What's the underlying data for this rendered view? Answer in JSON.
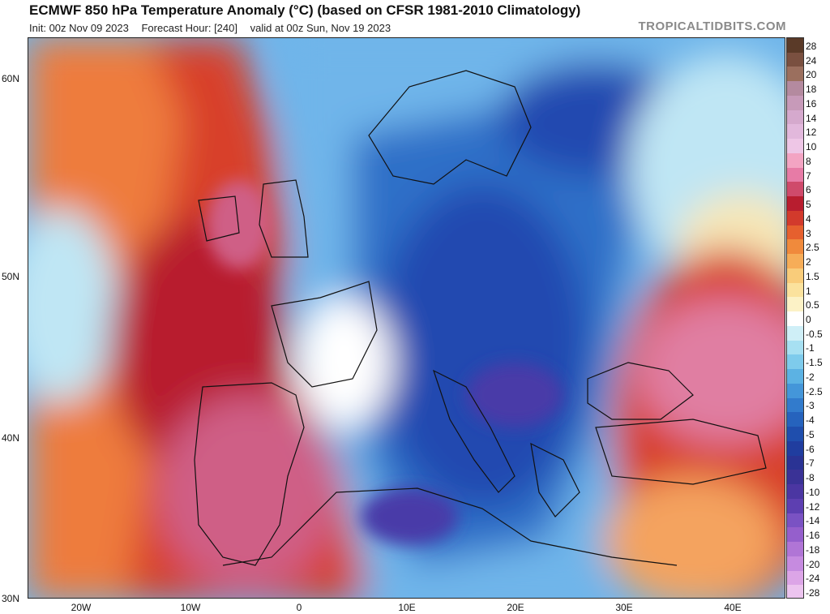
{
  "header": {
    "title": "ECMWF 850 hPa Temperature Anomaly (°C) (based on CFSR 1981-2010 Climatology)",
    "init": "Init: 00z Nov 09 2023",
    "forecast_hour": "Forecast Hour: [240]",
    "valid": "valid at 00z Sun, Nov 19 2023",
    "watermark": "TROPICALTIDBITS.COM"
  },
  "map": {
    "lat_labels": [
      "60N",
      "50N",
      "40N",
      "30N"
    ],
    "lon_labels": [
      "20W",
      "10W",
      "0",
      "10E",
      "20E",
      "30E",
      "40E"
    ],
    "colors": {
      "very_warm": "#b81d2f",
      "warm": "#d8402b",
      "mild": "#ee7b3d",
      "warmish": "#f4a35f",
      "neutral_warm": "#f7e7b6",
      "neutral": "#ffffff",
      "cool": "#bfe6f4",
      "cooler": "#6fb5ea",
      "cold": "#2f6fc8",
      "colder": "#2448b0",
      "coldest": "#4a3aa8",
      "hot_pink": "#cf5f86",
      "pink": "#e07ea2",
      "borders": "#111111"
    }
  },
  "colorbar": {
    "labels": [
      "28",
      "24",
      "20",
      "18",
      "16",
      "14",
      "12",
      "10",
      "8",
      "7",
      "6",
      "5",
      "4",
      "3",
      "2.5",
      "2",
      "1.5",
      "1",
      "0.5",
      "0",
      "-0.5",
      "-1",
      "-1.5",
      "-2",
      "-2.5",
      "-3",
      "-4",
      "-5",
      "-6",
      "-7",
      "-8",
      "-10",
      "-12",
      "-14",
      "-16",
      "-18",
      "-20",
      "-24",
      "-28"
    ],
    "colors": [
      "#5a3a28",
      "#7a5040",
      "#9b6f5e",
      "#b48a9f",
      "#c79ab9",
      "#d5a9cd",
      "#e2b8dc",
      "#eec6e6",
      "#f3a4c3",
      "#e77ba6",
      "#cf4a6b",
      "#b81d2f",
      "#d23a2c",
      "#e6602e",
      "#f08a3c",
      "#f6ad58",
      "#f9cc7a",
      "#fbe29d",
      "#fcf2c6",
      "#ffffff",
      "#cfeff7",
      "#a7e0f2",
      "#7ecbec",
      "#5cb2e3",
      "#4496d9",
      "#327bcc",
      "#2663bd",
      "#1f4ead",
      "#203d9f",
      "#2a3394",
      "#3a3296",
      "#4b36a2",
      "#5d3fb1",
      "#7a52c3",
      "#955fcc",
      "#b075d6",
      "#c68be0",
      "#dca5e7",
      "#ecc4ef"
    ]
  }
}
